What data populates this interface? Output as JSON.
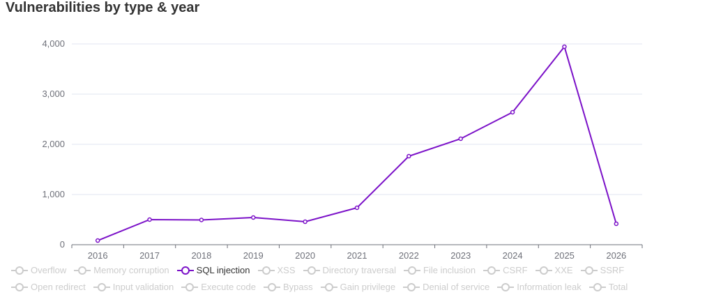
{
  "chart_data": {
    "type": "line",
    "title": "Vulnerabilities by type & year",
    "xlabel": "",
    "ylabel": "",
    "categories": [
      "2016",
      "2017",
      "2018",
      "2019",
      "2020",
      "2021",
      "2022",
      "2023",
      "2024",
      "2025",
      "2026"
    ],
    "series": [
      {
        "name": "SQL injection",
        "color": "#7b11c8",
        "values": [
          83,
          500,
          493,
          542,
          458,
          736,
          1764,
          2111,
          2639,
          3944,
          417
        ]
      }
    ],
    "ylim": [
      0,
      4000
    ],
    "yticks": [
      "0",
      "1,000",
      "2,000",
      "3,000",
      "4,000"
    ],
    "grid": true,
    "legend_position": "bottom",
    "legend": [
      [
        "Overflow",
        "Memory corruption",
        "SQL injection",
        "XSS",
        "Directory traversal",
        "File inclusion",
        "CSRF",
        "XXE",
        "SSRF"
      ],
      [
        "Open redirect",
        "Input validation",
        "Execute code",
        "Bypass",
        "Gain privilege",
        "Denial of service",
        "Information leak",
        "Total"
      ]
    ],
    "active": "SQL injection"
  }
}
